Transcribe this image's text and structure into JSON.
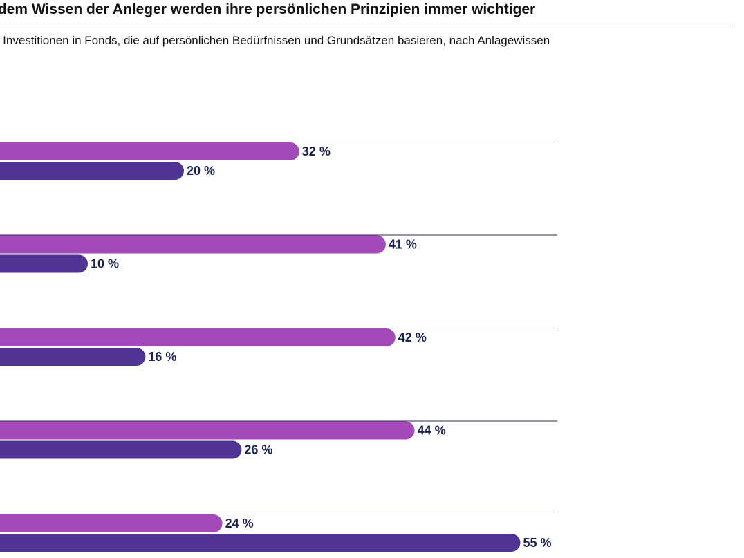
{
  "header": {
    "title": "ndem Wissen der Anleger werden ihre persönlichen Prinzipien immer wichtiger",
    "subtitle": "n Investitionen in Fonds, die auf persönlichen Bedürfnissen und Grundsätzen basieren, nach Anlagewissen"
  },
  "colors": {
    "series_a": "#a349b9",
    "series_b": "#503494",
    "label": "#1b2451",
    "rule": "#2b2f4e"
  },
  "chart_data": {
    "type": "bar",
    "orientation": "horizontal",
    "categories": [
      "",
      "",
      "",
      "",
      ""
    ],
    "series": [
      {
        "values": [
          32,
          41,
          42,
          44,
          24
        ]
      },
      {
        "values": [
          20,
          10,
          16,
          26,
          55
        ]
      }
    ],
    "value_suffix": " %",
    "grid": false
  }
}
